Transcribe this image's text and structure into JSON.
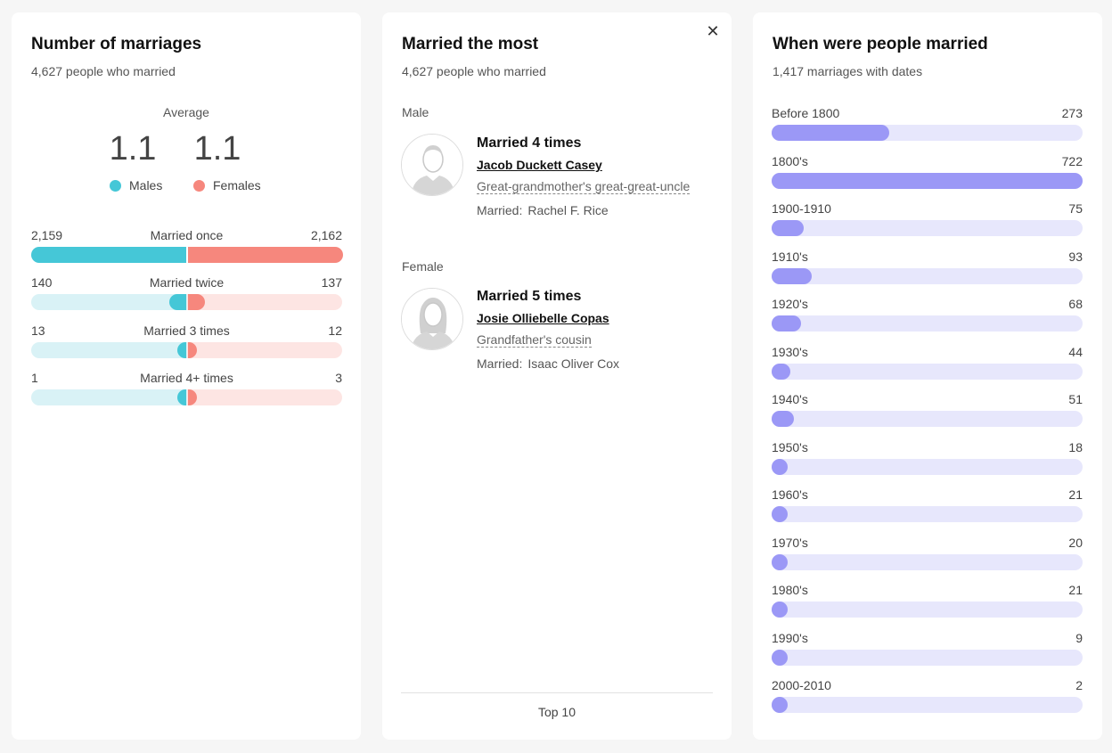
{
  "card1": {
    "title": "Number of marriages",
    "subtitle": "4,627 people who married",
    "average_label": "Average",
    "average_male": "1.1",
    "average_female": "1.1",
    "legend_male": "Males",
    "legend_female": "Females",
    "colors": {
      "male": "#45c7d7",
      "female": "#f6877d",
      "male_track": "#d9f2f6",
      "female_track": "#fde5e3"
    },
    "rows": [
      {
        "label": "Married once",
        "male": "2,159",
        "female": "2,162",
        "male_frac": 1.0,
        "female_frac": 1.0
      },
      {
        "label": "Married twice",
        "male": "140",
        "female": "137",
        "male_frac": 0.11,
        "female_frac": 0.11
      },
      {
        "label": "Married 3 times",
        "male": "13",
        "female": "12",
        "male_frac": 0.05,
        "female_frac": 0.05
      },
      {
        "label": "Married 4+ times",
        "male": "1",
        "female": "3",
        "male_frac": 0.05,
        "female_frac": 0.05
      }
    ]
  },
  "card2": {
    "title": "Married the most",
    "subtitle": "4,627 people who married",
    "close_icon": "close-icon",
    "male": {
      "section": "Male",
      "times": "Married 4 times",
      "name": "Jacob Duckett Casey",
      "relation": "Great-grandmother's great-great-uncle",
      "married_label": "Married:",
      "spouse": "Rachel F. Rice"
    },
    "female": {
      "section": "Female",
      "times": "Married 5 times",
      "name": "Josie Olliebelle Copas",
      "relation": "Grandfather's cousin",
      "married_label": "Married:",
      "spouse": "Isaac Oliver Cox"
    },
    "footer_link": "Top 10"
  },
  "card3": {
    "title": "When were people married",
    "subtitle": "1,417 marriages with dates",
    "colors": {
      "fill": "#9b98f6",
      "track": "#e7e7fc"
    },
    "max_value": 722,
    "rows": [
      {
        "label": "Before 1800",
        "value": 273
      },
      {
        "label": "1800's",
        "value": 722
      },
      {
        "label": "1900-1910",
        "value": 75
      },
      {
        "label": "1910's",
        "value": 93
      },
      {
        "label": "1920's",
        "value": 68
      },
      {
        "label": "1930's",
        "value": 44
      },
      {
        "label": "1940's",
        "value": 51
      },
      {
        "label": "1950's",
        "value": 18
      },
      {
        "label": "1960's",
        "value": 21
      },
      {
        "label": "1970's",
        "value": 20
      },
      {
        "label": "1980's",
        "value": 21
      },
      {
        "label": "1990's",
        "value": 9
      },
      {
        "label": "2000-2010",
        "value": 2
      }
    ]
  }
}
